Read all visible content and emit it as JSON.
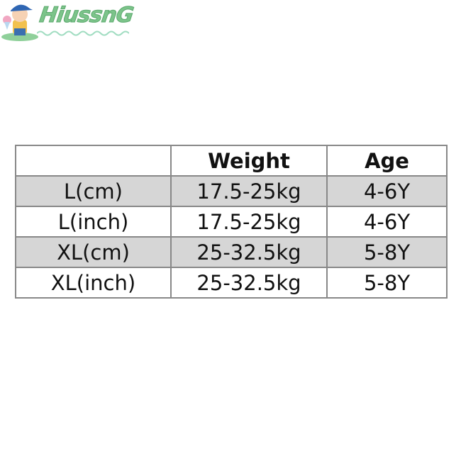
{
  "logo": {
    "text": "HiussnG"
  },
  "table": {
    "headers": [
      "",
      "Weight",
      "Age"
    ],
    "rows": [
      [
        "L(cm)",
        "17.5-25kg",
        "4-6Y"
      ],
      [
        "L(inch)",
        "17.5-25kg",
        "4-6Y"
      ],
      [
        "XL(cm)",
        "25-32.5kg",
        "5-8Y"
      ],
      [
        "XL(inch)",
        "25-32.5kg",
        "5-8Y"
      ]
    ]
  },
  "colors": {
    "logo_green": "#7cc48a",
    "row_shade": "#d6d6d6"
  }
}
